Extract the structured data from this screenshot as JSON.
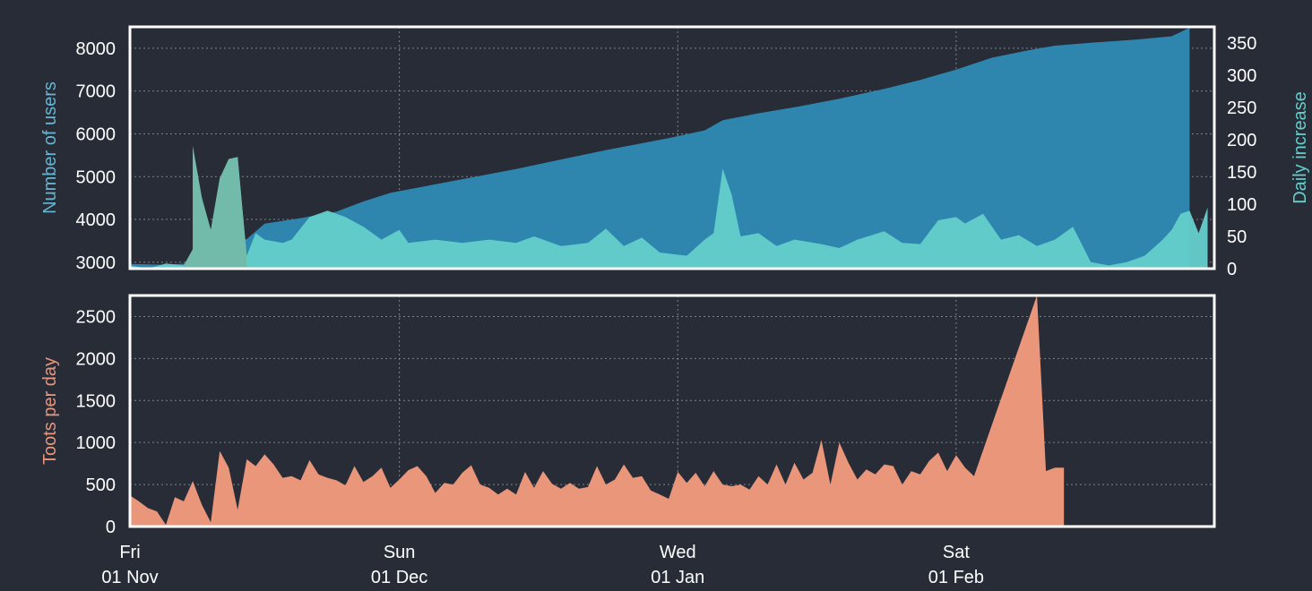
{
  "chart_data": [
    {
      "type": "area",
      "panel": "top",
      "ylabel": "Number of users",
      "ylabel_right": "Daily increase",
      "ylim": [
        2850,
        8500
      ],
      "ylim_right": [
        0,
        375
      ],
      "yticks": [
        3000,
        4000,
        5000,
        6000,
        7000,
        8000
      ],
      "yticks_right": [
        0,
        50,
        100,
        150,
        200,
        250,
        300,
        350
      ],
      "grid": true,
      "colors": {
        "users": "#2e86af",
        "increase": "#64cfcb",
        "increase_early": "#76b8a6"
      },
      "series": [
        {
          "axis": "left",
          "points": [
            [
              "2019-11-01",
              2960
            ],
            [
              "2019-11-05",
              2940
            ],
            [
              "2019-11-09",
              2990
            ],
            [
              "2019-11-10",
              3180
            ],
            [
              "2019-11-11",
              3420
            ],
            [
              "2019-11-13",
              3500
            ],
            [
              "2019-11-14",
              3540
            ],
            [
              "2019-11-16",
              3900
            ],
            [
              "2019-11-20",
              4030
            ],
            [
              "2019-11-24",
              4180
            ],
            [
              "2019-11-27",
              4420
            ],
            [
              "2019-11-30",
              4620
            ],
            [
              "2019-12-04",
              4780
            ],
            [
              "2019-12-09",
              4980
            ],
            [
              "2019-12-14",
              5180
            ],
            [
              "2019-12-19",
              5400
            ],
            [
              "2019-12-24",
              5620
            ],
            [
              "2019-12-28",
              5780
            ],
            [
              "2019-12-31",
              5900
            ],
            [
              "2020-01-04",
              6080
            ],
            [
              "2020-01-06",
              6320
            ],
            [
              "2020-01-10",
              6480
            ],
            [
              "2020-01-14",
              6620
            ],
            [
              "2020-01-19",
              6820
            ],
            [
              "2020-01-24",
              7050
            ],
            [
              "2020-01-28",
              7260
            ],
            [
              "2020-02-01",
              7500
            ],
            [
              "2020-02-05",
              7780
            ],
            [
              "2020-02-09",
              7950
            ],
            [
              "2020-02-12",
              8060
            ],
            [
              "2020-02-16",
              8130
            ],
            [
              "2020-02-21",
              8200
            ],
            [
              "2020-02-25",
              8280
            ],
            [
              "2020-02-27",
              8480
            ]
          ]
        },
        {
          "axis": "right",
          "points": [
            [
              "2019-11-01",
              5
            ],
            [
              "2019-11-03",
              0
            ],
            [
              "2019-11-05",
              8
            ],
            [
              "2019-11-07",
              5
            ],
            [
              "2019-11-08",
              30
            ],
            [
              "2019-11-08",
              190
            ],
            [
              "2019-11-09",
              110
            ],
            [
              "2019-11-10",
              60
            ],
            [
              "2019-11-11",
              140
            ],
            [
              "2019-11-12",
              170
            ],
            [
              "2019-11-13",
              173
            ],
            [
              "2019-11-14",
              20
            ],
            [
              "2019-11-15",
              55
            ],
            [
              "2019-11-16",
              45
            ],
            [
              "2019-11-18",
              40
            ],
            [
              "2019-11-19",
              45
            ],
            [
              "2019-11-21",
              80
            ],
            [
              "2019-11-23",
              90
            ],
            [
              "2019-11-25",
              80
            ],
            [
              "2019-11-27",
              65
            ],
            [
              "2019-11-29",
              45
            ],
            [
              "2019-12-01",
              60
            ],
            [
              "2019-12-02",
              40
            ],
            [
              "2019-12-05",
              45
            ],
            [
              "2019-12-08",
              40
            ],
            [
              "2019-12-11",
              45
            ],
            [
              "2019-12-14",
              40
            ],
            [
              "2019-12-16",
              50
            ],
            [
              "2019-12-19",
              35
            ],
            [
              "2019-12-22",
              40
            ],
            [
              "2019-12-24",
              62
            ],
            [
              "2019-12-26",
              35
            ],
            [
              "2019-12-28",
              48
            ],
            [
              "2019-12-30",
              25
            ],
            [
              "2020-01-02",
              20
            ],
            [
              "2020-01-04",
              45
            ],
            [
              "2020-01-05",
              55
            ],
            [
              "2020-01-06",
              155
            ],
            [
              "2020-01-07",
              115
            ],
            [
              "2020-01-08",
              50
            ],
            [
              "2020-01-10",
              55
            ],
            [
              "2020-01-12",
              35
            ],
            [
              "2020-01-14",
              45
            ],
            [
              "2020-01-17",
              38
            ],
            [
              "2020-01-19",
              32
            ],
            [
              "2020-01-21",
              45
            ],
            [
              "2020-01-24",
              58
            ],
            [
              "2020-01-26",
              40
            ],
            [
              "2020-01-28",
              38
            ],
            [
              "2020-01-30",
              75
            ],
            [
              "2020-02-01",
              80
            ],
            [
              "2020-02-02",
              70
            ],
            [
              "2020-02-04",
              85
            ],
            [
              "2020-02-06",
              45
            ],
            [
              "2020-02-08",
              52
            ],
            [
              "2020-02-10",
              35
            ],
            [
              "2020-02-12",
              45
            ],
            [
              "2020-02-14",
              65
            ],
            [
              "2020-02-16",
              10
            ],
            [
              "2020-02-18",
              5
            ],
            [
              "2020-02-20",
              10
            ],
            [
              "2020-02-22",
              20
            ],
            [
              "2020-02-24",
              45
            ],
            [
              "2020-02-25",
              60
            ],
            [
              "2020-02-26",
              85
            ],
            [
              "2020-02-27",
              90
            ],
            [
              "2020-02-28",
              55
            ],
            [
              "2020-02-29",
              95
            ]
          ]
        }
      ]
    },
    {
      "type": "area",
      "panel": "bottom",
      "ylabel": "Toots per day",
      "ylim": [
        0,
        2750
      ],
      "yticks": [
        0,
        500,
        1000,
        1500,
        2000,
        2500
      ],
      "grid": true,
      "colors": {
        "toots": "#e9967a"
      },
      "x_ticks": [
        {
          "date": "2019-11-01",
          "day": "Fri",
          "label": "01 Nov"
        },
        {
          "date": "2019-12-01",
          "day": "Sun",
          "label": "01 Dec"
        },
        {
          "date": "2020-01-01",
          "day": "Wed",
          "label": "01 Jan"
        },
        {
          "date": "2020-02-01",
          "day": "Sat",
          "label": "01 Feb"
        }
      ],
      "series": [
        {
          "points": [
            [
              "2019-11-01",
              370
            ],
            [
              "2019-11-02",
              300
            ],
            [
              "2019-11-03",
              220
            ],
            [
              "2019-11-04",
              180
            ],
            [
              "2019-11-05",
              20
            ],
            [
              "2019-11-06",
              350
            ],
            [
              "2019-11-07",
              300
            ],
            [
              "2019-11-08",
              540
            ],
            [
              "2019-11-09",
              260
            ],
            [
              "2019-11-10",
              50
            ],
            [
              "2019-11-11",
              900
            ],
            [
              "2019-11-12",
              700
            ],
            [
              "2019-11-13",
              200
            ],
            [
              "2019-11-14",
              800
            ],
            [
              "2019-11-15",
              720
            ],
            [
              "2019-11-16",
              860
            ],
            [
              "2019-11-17",
              740
            ],
            [
              "2019-11-18",
              580
            ],
            [
              "2019-11-19",
              600
            ],
            [
              "2019-11-20",
              550
            ],
            [
              "2019-11-21",
              790
            ],
            [
              "2019-11-22",
              620
            ],
            [
              "2019-11-23",
              580
            ],
            [
              "2019-11-24",
              550
            ],
            [
              "2019-11-25",
              490
            ],
            [
              "2019-11-26",
              720
            ],
            [
              "2019-11-27",
              530
            ],
            [
              "2019-11-28",
              600
            ],
            [
              "2019-11-29",
              700
            ],
            [
              "2019-11-30",
              460
            ],
            [
              "2019-12-01",
              560
            ],
            [
              "2019-12-02",
              670
            ],
            [
              "2019-12-03",
              720
            ],
            [
              "2019-12-04",
              600
            ],
            [
              "2019-12-05",
              400
            ],
            [
              "2019-12-06",
              520
            ],
            [
              "2019-12-07",
              500
            ],
            [
              "2019-12-08",
              640
            ],
            [
              "2019-12-09",
              730
            ],
            [
              "2019-12-10",
              500
            ],
            [
              "2019-12-11",
              460
            ],
            [
              "2019-12-12",
              380
            ],
            [
              "2019-12-13",
              450
            ],
            [
              "2019-12-14",
              380
            ],
            [
              "2019-12-15",
              650
            ],
            [
              "2019-12-16",
              460
            ],
            [
              "2019-12-17",
              660
            ],
            [
              "2019-12-18",
              510
            ],
            [
              "2019-12-19",
              450
            ],
            [
              "2019-12-20",
              520
            ],
            [
              "2019-12-21",
              450
            ],
            [
              "2019-12-22",
              470
            ],
            [
              "2019-12-23",
              720
            ],
            [
              "2019-12-24",
              500
            ],
            [
              "2019-12-25",
              560
            ],
            [
              "2019-12-26",
              740
            ],
            [
              "2019-12-27",
              580
            ],
            [
              "2019-12-28",
              600
            ],
            [
              "2019-12-29",
              430
            ],
            [
              "2019-12-30",
              380
            ],
            [
              "2019-12-31",
              330
            ],
            [
              "2020-01-01",
              650
            ],
            [
              "2020-01-02",
              520
            ],
            [
              "2020-01-03",
              640
            ],
            [
              "2020-01-04",
              480
            ],
            [
              "2020-01-05",
              660
            ],
            [
              "2020-01-06",
              500
            ],
            [
              "2020-01-07",
              480
            ],
            [
              "2020-01-08",
              500
            ],
            [
              "2020-01-09",
              440
            ],
            [
              "2020-01-10",
              600
            ],
            [
              "2020-01-11",
              500
            ],
            [
              "2020-01-12",
              740
            ],
            [
              "2020-01-13",
              500
            ],
            [
              "2020-01-14",
              760
            ],
            [
              "2020-01-15",
              560
            ],
            [
              "2020-01-16",
              640
            ],
            [
              "2020-01-17",
              1030
            ],
            [
              "2020-01-18",
              500
            ],
            [
              "2020-01-19",
              1000
            ],
            [
              "2020-01-20",
              760
            ],
            [
              "2020-01-21",
              560
            ],
            [
              "2020-01-22",
              680
            ],
            [
              "2020-01-23",
              620
            ],
            [
              "2020-01-24",
              740
            ],
            [
              "2020-01-25",
              720
            ],
            [
              "2020-01-26",
              500
            ],
            [
              "2020-01-27",
              660
            ],
            [
              "2020-01-28",
              620
            ],
            [
              "2020-01-29",
              780
            ],
            [
              "2020-01-30",
              880
            ],
            [
              "2020-01-31",
              660
            ],
            [
              "2020-02-01",
              850
            ],
            [
              "2020-02-02",
              700
            ],
            [
              "2020-02-03",
              600
            ],
            [
              "2020-02-10",
              2750
            ],
            [
              "2020-02-11",
              660
            ],
            [
              "2020-02-12",
              700
            ],
            [
              "2020-02-13",
              700
            ]
          ]
        }
      ]
    }
  ]
}
